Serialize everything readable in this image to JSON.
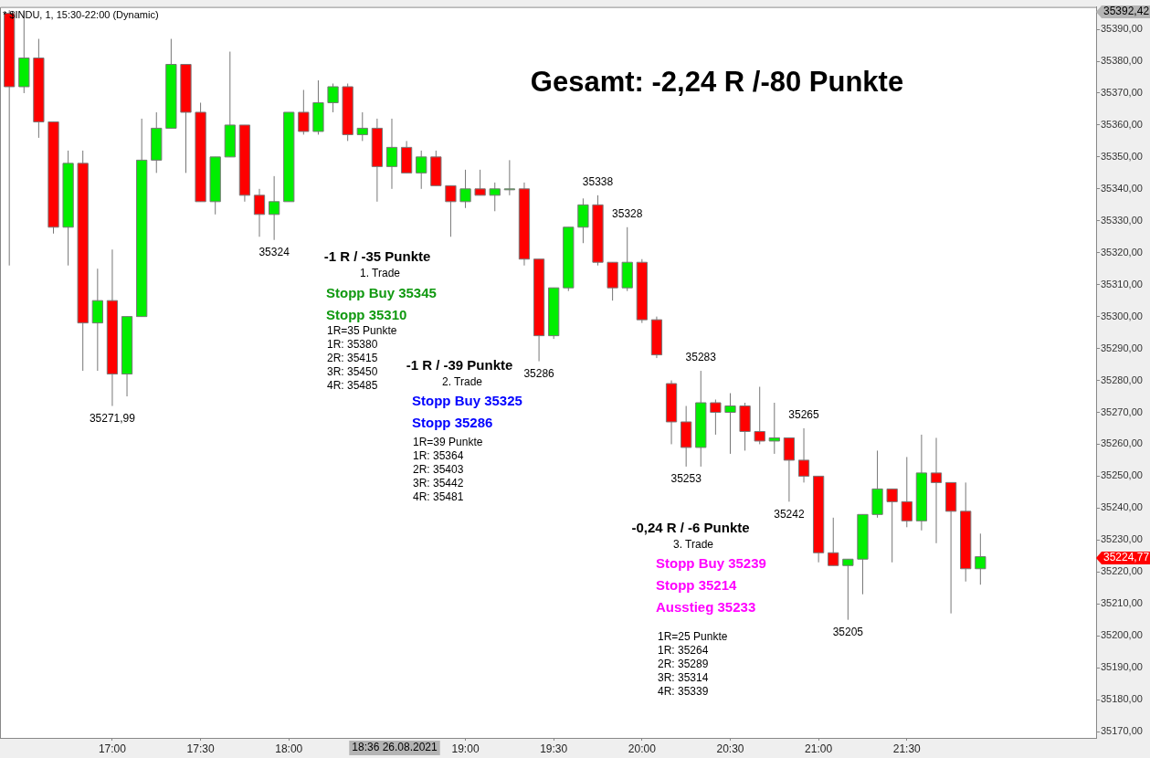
{
  "chart_data": {
    "type": "candlestick",
    "title": "* $INDU, 1, 15:30-22:00 (Dynamic)",
    "x": [
      16.4167,
      16.5,
      16.5833,
      16.6667,
      16.75,
      16.8333,
      16.9167,
      17,
      17.0833,
      17.1667,
      17.25,
      17.3333,
      17.4167,
      17.5,
      17.5833,
      17.6667,
      17.75,
      17.8333,
      17.9167,
      18,
      18.0833,
      18.1667,
      18.25,
      18.3333,
      18.4167,
      18.5,
      18.5833,
      18.6667,
      18.75,
      18.8333,
      18.9167,
      19,
      19.0833,
      19.1667,
      19.25,
      19.3333,
      19.4167,
      19.5,
      19.5833,
      19.6667,
      19.75,
      19.8333,
      19.9167,
      20,
      20.0833,
      20.1667,
      20.25,
      20.3333,
      20.4167,
      20.5,
      20.5833,
      20.6667,
      20.75,
      20.8333,
      20.9167,
      21,
      21.0833,
      21.1667,
      21.25,
      21.3333,
      21.4167,
      21.5,
      21.5833,
      21.6667,
      21.75,
      21.8333,
      21.9167
    ],
    "ohlc": [
      [
        35395,
        35396,
        35316,
        35372
      ],
      [
        35372,
        35396,
        35370,
        35381
      ],
      [
        35381,
        35387,
        35356,
        35361
      ],
      [
        35361,
        35361,
        35326,
        35328
      ],
      [
        35328,
        35352,
        35316,
        35348
      ],
      [
        35348,
        35352,
        35283,
        35298
      ],
      [
        35298,
        35315,
        35283,
        35305
      ],
      [
        35305,
        35321,
        35271.99,
        35282
      ],
      [
        35282,
        35300,
        35275,
        35300
      ],
      [
        35300,
        35362,
        35300,
        35349
      ],
      [
        35349,
        35364,
        35345,
        35359
      ],
      [
        35359,
        35387,
        35359,
        35379
      ],
      [
        35379,
        35379,
        35345,
        35364
      ],
      [
        35364,
        35367,
        35336,
        35336
      ],
      [
        35336,
        35350,
        35332,
        35350
      ],
      [
        35350,
        35383,
        35350,
        35360
      ],
      [
        35360,
        35360,
        35336,
        35338
      ],
      [
        35338,
        35340,
        35325,
        35332
      ],
      [
        35332,
        35344,
        35324,
        35336
      ],
      [
        35336,
        35364,
        35336,
        35364
      ],
      [
        35364,
        35371,
        35357,
        35358
      ],
      [
        35358,
        35374,
        35357,
        35367
      ],
      [
        35367,
        35373,
        35364,
        35372
      ],
      [
        35372,
        35373,
        35355,
        35357
      ],
      [
        35357,
        35364,
        35355,
        35359
      ],
      [
        35359,
        35362,
        35336,
        35347
      ],
      [
        35347,
        35362,
        35340,
        35353
      ],
      [
        35353,
        35355,
        35345,
        35345
      ],
      [
        35345,
        35352,
        35340,
        35350
      ],
      [
        35350,
        35352,
        35341,
        35341
      ],
      [
        35341,
        35341,
        35325,
        35336
      ],
      [
        35336,
        35346,
        35334,
        35340
      ],
      [
        35340,
        35346,
        35338,
        35338
      ],
      [
        35338,
        35342,
        35333,
        35340
      ],
      [
        35340,
        35349,
        35338,
        35340
      ],
      [
        35340,
        35342,
        35316,
        35318
      ],
      [
        35318,
        35318,
        35286,
        35294
      ],
      [
        35294,
        35309,
        35293,
        35309
      ],
      [
        35309,
        35328,
        35308,
        35328
      ],
      [
        35328,
        35337,
        35323,
        35335
      ],
      [
        35335,
        35338,
        35316,
        35317
      ],
      [
        35317,
        35317,
        35305,
        35309
      ],
      [
        35309,
        35328,
        35308,
        35317
      ],
      [
        35317,
        35318,
        35298,
        35299
      ],
      [
        35299,
        35300,
        35287,
        35288
      ],
      [
        35279,
        35280,
        35260,
        35267
      ],
      [
        35267,
        35272,
        35253,
        35259
      ],
      [
        35259,
        35283,
        35253,
        35273
      ],
      [
        35273,
        35274,
        35263,
        35270
      ],
      [
        35270,
        35276,
        35257,
        35272
      ],
      [
        35272,
        35273,
        35258,
        35264
      ],
      [
        35264,
        35278,
        35260,
        35261
      ],
      [
        35261,
        35273,
        35257,
        35262
      ],
      [
        35262,
        35262,
        35242,
        35255
      ],
      [
        35255,
        35265,
        35248,
        35250
      ],
      [
        35250,
        35250,
        35223,
        35226
      ],
      [
        35226,
        35237,
        35222,
        35222
      ],
      [
        35222,
        35224,
        35205,
        35224
      ],
      [
        35224,
        35238,
        35213,
        35238
      ],
      [
        35238,
        35258,
        35237,
        35246
      ],
      [
        35246,
        35246,
        35223,
        35242
      ],
      [
        35242,
        35256,
        35234,
        35236
      ],
      [
        35236,
        35263,
        35233,
        35251
      ],
      [
        35251,
        35262,
        35229,
        35248
      ],
      [
        35248,
        35248,
        35207,
        35239
      ],
      [
        35239,
        35248,
        35217,
        35221
      ],
      [
        35221,
        35232,
        35216,
        35224.77
      ]
    ],
    "xlim": [
      16.364,
      22.572
    ],
    "ylim": [
      35168,
      35397
    ],
    "xticks": [
      {
        "value": 17,
        "label": "17:00"
      },
      {
        "value": 17.5,
        "label": "17:30"
      },
      {
        "value": 18,
        "label": "18:00"
      },
      {
        "value": 19,
        "label": "19:00"
      },
      {
        "value": 19.5,
        "label": "19:30"
      },
      {
        "value": 20,
        "label": "20:00"
      },
      {
        "value": 20.5,
        "label": "20:30"
      },
      {
        "value": 21,
        "label": "21:00"
      },
      {
        "value": 21.5,
        "label": "21:30"
      }
    ],
    "yticks": [
      {
        "value": 35170,
        "label": "35170,00"
      },
      {
        "value": 35180,
        "label": "35180,00"
      },
      {
        "value": 35190,
        "label": "35190,00"
      },
      {
        "value": 35200,
        "label": "35200,00"
      },
      {
        "value": 35210,
        "label": "35210,00"
      },
      {
        "value": 35220,
        "label": "35220,00"
      },
      {
        "value": 35230,
        "label": "35230,00"
      },
      {
        "value": 35240,
        "label": "35240,00"
      },
      {
        "value": 35250,
        "label": "35250,00"
      },
      {
        "value": 35260,
        "label": "35260,00"
      },
      {
        "value": 35270,
        "label": "35270,00"
      },
      {
        "value": 35280,
        "label": "35280,00"
      },
      {
        "value": 35290,
        "label": "35290,00"
      },
      {
        "value": 35300,
        "label": "35300,00"
      },
      {
        "value": 35310,
        "label": "35310,00"
      },
      {
        "value": 35320,
        "label": "35320,00"
      },
      {
        "value": 35330,
        "label": "35330,00"
      },
      {
        "value": 35340,
        "label": "35340,00"
      },
      {
        "value": 35350,
        "label": "35350,00"
      },
      {
        "value": 35360,
        "label": "35360,00"
      },
      {
        "value": 35370,
        "label": "35370,00"
      },
      {
        "value": 35380,
        "label": "35380,00"
      },
      {
        "value": 35390,
        "label": "35390,00"
      }
    ],
    "annotations": [
      {
        "text": "35271,99",
        "x": 17,
        "y": 35271.99
      },
      {
        "text": "35324",
        "x": 17.9167,
        "y": 35324
      },
      {
        "text": "35286",
        "x": 19.4167,
        "y": 35286
      },
      {
        "text": "35338",
        "x": 19.75,
        "y": 35338
      },
      {
        "text": "35328",
        "x": 19.9167,
        "y": 35328
      },
      {
        "text": "35283",
        "x": 20.3333,
        "y": 35283
      },
      {
        "text": "35253",
        "x": 20.25,
        "y": 35253
      },
      {
        "text": "35265",
        "x": 20.9167,
        "y": 35265
      },
      {
        "text": "35242",
        "x": 20.8333,
        "y": 35242
      },
      {
        "text": "35205",
        "x": 21.1667,
        "y": 35205
      },
      "Gesamt: -2,24 R /-80 Punkte",
      "-1 R / -35 Punkte",
      "1. Trade",
      "Stopp Buy 35345",
      "Stopp 35310",
      "1R=35 Punkte",
      "1R: 35380",
      "2R: 35415",
      "3R: 35450",
      "4R: 35485",
      "-1 R / -39 Punkte",
      "2. Trade",
      "Stopp Buy 35325",
      "Stopp 35286",
      "1R=39 Punkte",
      "1R: 35364",
      "2R: 35403",
      "3R: 35442",
      "4R: 35481",
      "-0,24 R / -6 Punkte",
      "3. Trade",
      "Stopp Buy 35239",
      "Stopp 35214",
      "Ausstieg 35233",
      "1R=25 Punkte",
      "1R: 35264",
      "2R: 35289",
      "3R: 35314",
      "4R: 35339",
      "35392,42",
      "35224,77",
      "18:36 26.08.2021"
    ]
  }
}
